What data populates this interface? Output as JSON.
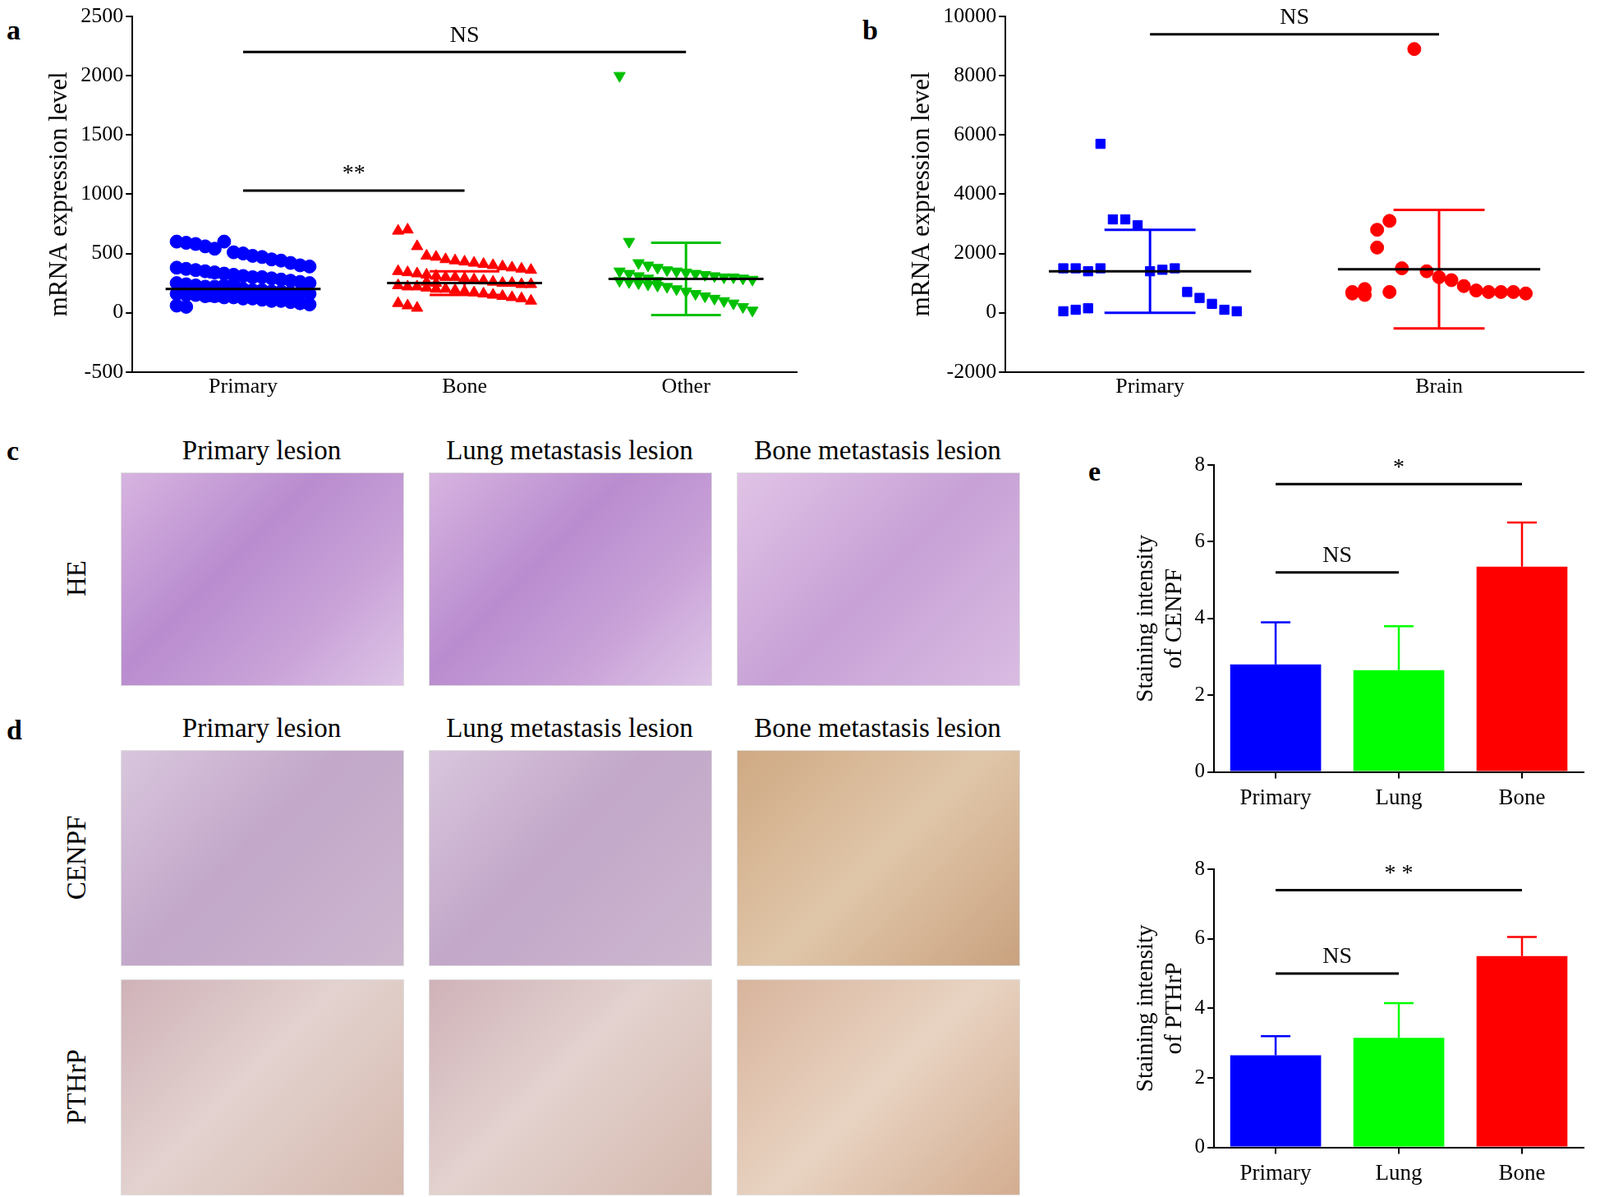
{
  "chart_data": [
    {
      "panel_label": "a",
      "type": "scatter",
      "y_label": "mRNA expression level",
      "categories": [
        "Primary",
        "Bone",
        "Other"
      ],
      "groups": [
        {
          "color": "#0000ff",
          "marker": "circle",
          "mean": 200,
          "sd": 100,
          "values": [
            600,
            590,
            580,
            560,
            540,
            600,
            510,
            500,
            480,
            470,
            450,
            440,
            420,
            400,
            390,
            380,
            370,
            360,
            350,
            340,
            330,
            320,
            310,
            300,
            300,
            290,
            280,
            270,
            260,
            250,
            250,
            240,
            230,
            220,
            220,
            210,
            200,
            200,
            190,
            190,
            180,
            180,
            170,
            170,
            160,
            160,
            150,
            150,
            140,
            140,
            130,
            130,
            120,
            120,
            110,
            100,
            100,
            90,
            80,
            70,
            60,
            50,
            220,
            210,
            200,
            230,
            240,
            190,
            180,
            170
          ]
        },
        {
          "color": "#ff0000",
          "marker": "triangle",
          "mean": 250,
          "sd": 100,
          "values": [
            690,
            700,
            560,
            480,
            470,
            450,
            440,
            430,
            420,
            410,
            400,
            390,
            380,
            370,
            360,
            350,
            340,
            330,
            320,
            310,
            300,
            300,
            290,
            280,
            270,
            260,
            250,
            250,
            240,
            240,
            230,
            220,
            220,
            210,
            200,
            200,
            190,
            180,
            170,
            160,
            150,
            140,
            130,
            120,
            100,
            80,
            60,
            40,
            260,
            250
          ]
        },
        {
          "color": "#00c000",
          "marker": "triangle-down",
          "mean": 285,
          "sd": 305,
          "values": [
            2000,
            600,
            420,
            400,
            380,
            360,
            350,
            340,
            330,
            320,
            310,
            300,
            300,
            290,
            280,
            270,
            260,
            250,
            240,
            230,
            220,
            200,
            180,
            160,
            140,
            120,
            100,
            80,
            50,
            20,
            350,
            330,
            310,
            290,
            270
          ]
        }
      ],
      "ylim": [
        -500,
        2500
      ],
      "yticks": [
        -500,
        0,
        500,
        1000,
        1500,
        2000,
        2500
      ],
      "grid": false,
      "annotations": [
        {
          "from": "Primary",
          "to": "Other",
          "y": 2200,
          "text": "NS"
        },
        {
          "from": "Primary",
          "to": "Bone",
          "y": 1030,
          "text": "**"
        }
      ]
    },
    {
      "panel_label": "b",
      "type": "scatter",
      "y_label": "mRNA expression level",
      "categories": [
        "Primary",
        "Brain"
      ],
      "groups": [
        {
          "color": "#0000ff",
          "marker": "square",
          "mean": 1400,
          "sd": 1400,
          "values": [
            1500,
            1500,
            1400,
            5700,
            3150,
            3150,
            2950,
            1400,
            1450,
            1500,
            700,
            500,
            300,
            100,
            50,
            50,
            100,
            150,
            1500
          ]
        },
        {
          "color": "#ff0000",
          "marker": "circle",
          "mean": 1470,
          "sd": 2000,
          "values": [
            700,
            800,
            2200,
            3100,
            1500,
            8900,
            1400,
            1200,
            1100,
            900,
            750,
            700,
            700,
            700,
            650,
            650,
            600,
            2800,
            700
          ]
        }
      ],
      "ylim": [
        -2000,
        10000
      ],
      "yticks": [
        -2000,
        0,
        2000,
        4000,
        6000,
        8000,
        10000
      ],
      "grid": false,
      "annotations": [
        {
          "from": "Primary",
          "to": "Brain",
          "y": 9400,
          "text": "NS"
        }
      ]
    },
    {
      "panel_label": "e",
      "type": "bar",
      "y_label": [
        "Staining intensity",
        "of CENPF"
      ],
      "categories": [
        "Primary",
        "Lung",
        "Bone"
      ],
      "values": [
        2.8,
        2.65,
        5.35
      ],
      "errors": [
        1.1,
        1.15,
        1.15
      ],
      "colors": [
        "#0000ff",
        "#00ff00",
        "#ff0000"
      ],
      "ylim": [
        0,
        8
      ],
      "yticks": [
        0,
        2,
        4,
        6,
        8
      ],
      "grid": false,
      "annotations": [
        {
          "from": "Primary",
          "to": "Bone",
          "y": 7.5,
          "text": "*"
        },
        {
          "from": "Primary",
          "to": "Lung",
          "y": 5.2,
          "text": "NS"
        }
      ]
    },
    {
      "type": "bar",
      "y_label": [
        "Staining intensity",
        "of PTHrP"
      ],
      "categories": [
        "Primary",
        "Lung",
        "Bone"
      ],
      "values": [
        2.65,
        3.15,
        5.5
      ],
      "errors": [
        0.55,
        1.0,
        0.55
      ],
      "colors": [
        "#0000ff",
        "#00ff00",
        "#ff0000"
      ],
      "ylim": [
        0,
        8
      ],
      "yticks": [
        0,
        2,
        4,
        6,
        8
      ],
      "grid": false,
      "annotations": [
        {
          "from": "Primary",
          "to": "Bone",
          "y": 7.4,
          "text": "* *"
        },
        {
          "from": "Primary",
          "to": "Lung",
          "y": 5.0,
          "text": "NS"
        }
      ]
    }
  ],
  "image_panels": [
    {
      "panel_label": "c",
      "columns": [
        "Primary lesion",
        "Lung metastasis lesion",
        "Bone metastasis lesion"
      ],
      "rows": [
        "HE"
      ]
    },
    {
      "panel_label": "d",
      "columns": [
        "Primary lesion",
        "Lung metastasis lesion",
        "Bone metastasis lesion"
      ],
      "rows": [
        "CENPF",
        "PTHrP"
      ]
    }
  ]
}
